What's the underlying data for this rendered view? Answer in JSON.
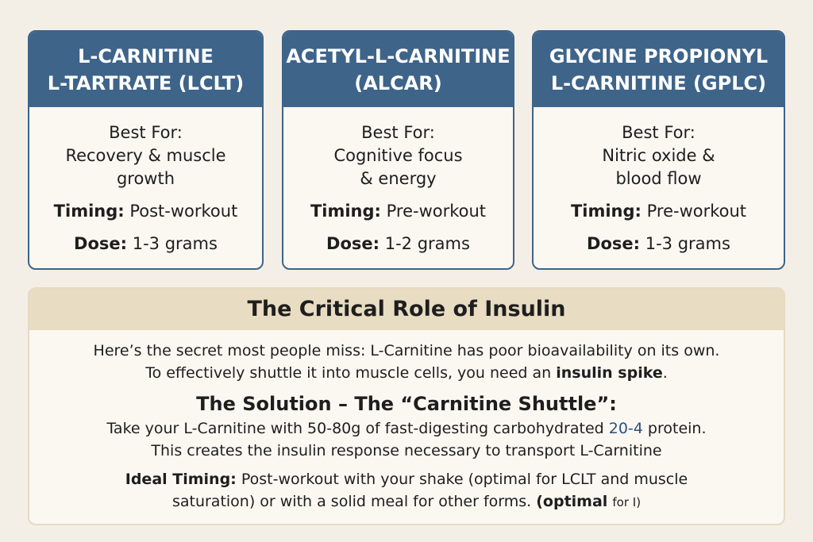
{
  "cards": [
    {
      "title_lines": [
        "L-CARNITINE",
        "L-TARTRATE (LCLT)"
      ],
      "best_for_label": "Best For:",
      "best_for_lines": [
        "Recovery & muscle",
        "growth"
      ],
      "timing_label": "Timing:",
      "timing_value": "Post-workout",
      "dose_label": "Dose:",
      "dose_value": "1-3 grams"
    },
    {
      "title_lines": [
        "ACETYL-L-CARNITINE",
        "(ALCAR)"
      ],
      "best_for_label": "Best For:",
      "best_for_lines": [
        "Cognitive focus",
        "& energy"
      ],
      "timing_label": "Timing:",
      "timing_value": "Pre-workout",
      "dose_label": "Dose:",
      "dose_value": "1-2 grams"
    },
    {
      "title_lines": [
        "GLYCINE PROPIONYL",
        "L-CARNITINE (GPLC)"
      ],
      "best_for_label": "Best For:",
      "best_for_lines": [
        "Nitric oxide &",
        "blood flow"
      ],
      "timing_label": "Timing:",
      "timing_value": "Pre-workout",
      "dose_label": "Dose:",
      "dose_value": "1-3 grams"
    }
  ],
  "panel": {
    "title": "The Critical Role of Insulin",
    "intro_line_1": "Here’s the secret most people miss: L-Carnitine has poor bioavailability on its own.",
    "intro_line_2_start": "To effectively shuttle it into muscle cells, you need an",
    "intro_bold": "insulin spike",
    "intro_end": ".",
    "solution_title": "The Solution – The “Carnitine Shuttle”:",
    "solution_line_1_start": "Take your L-Carnitine with 50-80g of fast-digesting carbohydrated",
    "solution_highlight": "20-4",
    "solution_line_1_end": "protein.",
    "solution_line_2": "This creates the insulin response necessary to transport L-Carnitine",
    "ideal_label": "Ideal Timing:",
    "ideal_line_1": "Post-workout with your shake (optimal for LCLT and muscle",
    "ideal_line_2": "saturation) or with a solid meal for other forms.",
    "ideal_bold": "(optimal",
    "ideal_small": "for I)"
  }
}
